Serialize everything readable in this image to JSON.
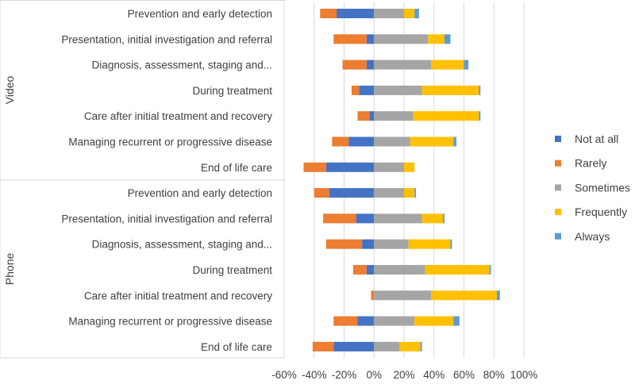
{
  "chart_data": {
    "type": "bar",
    "orientation": "horizontal",
    "stacking": "diverging",
    "title": "",
    "xlabel": "",
    "ylabel": "",
    "xlim": [
      -60,
      100
    ],
    "x_ticks": [
      -60,
      -40,
      -20,
      0,
      20,
      40,
      60,
      80,
      100
    ],
    "x_tick_labels": [
      "-60%",
      "-40%",
      "-20%",
      "0%",
      "20%",
      "40%",
      "60%",
      "80%",
      "100%"
    ],
    "grid": "vertical",
    "legend_position": "right",
    "groups": [
      {
        "name": "Video",
        "categories": [
          "Prevention and early detection",
          "Presentation, initial investigation and referral",
          "Diagnosis, assessment, staging and...",
          "During treatment",
          "Care after initial treatment and recovery",
          "Managing recurrent or progressive disease",
          "End of life care"
        ]
      },
      {
        "name": "Phone",
        "categories": [
          "Prevention and early detection",
          "Presentation, initial investigation and referral",
          "Diagnosis, assessment, staging and...",
          "During treatment",
          "Care after initial treatment and recovery",
          "Managing recurrent or progressive disease",
          "End of life care"
        ]
      }
    ],
    "series": [
      {
        "name": "Not at all",
        "color": "#4472c4",
        "direction": "negative",
        "values": [
          25,
          5,
          5,
          10,
          3,
          17,
          32,
          30,
          12,
          8,
          5,
          0,
          11,
          27
        ]
      },
      {
        "name": "Rarely",
        "color": "#ed7d31",
        "direction": "negative",
        "values": [
          11,
          22,
          16,
          5,
          8,
          11,
          15,
          10,
          22,
          24,
          9,
          2,
          16,
          14
        ]
      },
      {
        "name": "Sometimes",
        "color": "#a5a5a5",
        "direction": "positive",
        "values": [
          20,
          36,
          38,
          32,
          26,
          24,
          20,
          20,
          32,
          23,
          34,
          38,
          27,
          17
        ]
      },
      {
        "name": "Frequently",
        "color": "#ffc000",
        "direction": "positive",
        "values": [
          7,
          11,
          22,
          38,
          44,
          29,
          7,
          7,
          14,
          28,
          43,
          44,
          26,
          14
        ]
      },
      {
        "name": "Always",
        "color": "#5b9bd5",
        "direction": "positive",
        "values": [
          3,
          4,
          3,
          1,
          1,
          2,
          0,
          1,
          1,
          1,
          1,
          2,
          4,
          1
        ]
      }
    ]
  }
}
